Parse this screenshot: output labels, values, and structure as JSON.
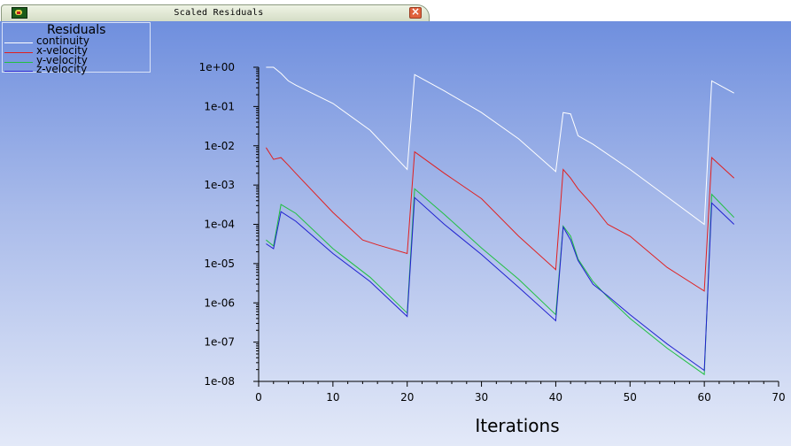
{
  "window": {
    "title": "Scaled Residuals",
    "close_glyph": "×"
  },
  "icons": {
    "app": "app-icon",
    "close": "close-icon"
  },
  "chart_data": {
    "type": "line",
    "title": "",
    "xlabel": "Iterations",
    "ylabel": "",
    "xlim": [
      0,
      70
    ],
    "ylim": [
      1e-08,
      1
    ],
    "yscale": "log",
    "xticks": [
      0,
      10,
      20,
      30,
      40,
      50,
      60,
      70
    ],
    "xtick_labels": [
      "0",
      "10",
      "20",
      "30",
      "40",
      "50",
      "60",
      "70"
    ],
    "yticks": [
      1,
      0.1,
      0.01,
      0.001,
      0.0001,
      1e-05,
      1e-06,
      1e-07,
      1e-08
    ],
    "ytick_labels": [
      "1e+00",
      "1e-01",
      "1e-02",
      "1e-03",
      "1e-04",
      "1e-05",
      "1e-06",
      "1e-07",
      "1e-08"
    ],
    "grid": false,
    "legend": {
      "title": "Residuals",
      "placement": "top-left"
    },
    "series": [
      {
        "name": "continuity",
        "color": "#ffffff",
        "x": [
          1,
          2,
          3,
          4,
          5,
          10,
          15,
          20,
          21,
          25,
          30,
          35,
          40,
          41,
          42,
          43,
          45,
          50,
          55,
          60,
          61,
          64
        ],
        "y": [
          1.0,
          1.0,
          0.7,
          0.45,
          0.35,
          0.12,
          0.025,
          0.0025,
          0.65,
          0.25,
          0.07,
          0.015,
          0.0022,
          0.07,
          0.065,
          0.018,
          0.011,
          0.0025,
          0.0005,
          0.0001,
          0.45,
          0.22
        ]
      },
      {
        "name": "x-velocity",
        "color": "#e02020",
        "x": [
          1,
          2,
          3,
          4,
          5,
          10,
          14,
          16,
          20,
          21,
          25,
          30,
          35,
          40,
          41,
          42,
          43,
          45,
          47,
          50,
          55,
          60,
          61,
          64
        ],
        "y": [
          0.009,
          0.0045,
          0.005,
          0.0032,
          0.002,
          0.0002,
          4e-05,
          3e-05,
          1.8e-05,
          0.007,
          0.002,
          0.00045,
          5e-05,
          7e-06,
          0.0025,
          0.0015,
          0.0008,
          0.0003,
          0.0001,
          5e-05,
          8e-06,
          2e-06,
          0.005,
          0.0015
        ]
      },
      {
        "name": "y-velocity",
        "color": "#20c040",
        "x": [
          1,
          2,
          3,
          5,
          10,
          15,
          20,
          21,
          25,
          30,
          35,
          40,
          41,
          42,
          43,
          45,
          47,
          50,
          55,
          60,
          61,
          64
        ],
        "y": [
          4e-05,
          2.8e-05,
          0.00032,
          0.00019,
          2.4e-05,
          4.5e-06,
          5.5e-07,
          0.0008,
          0.00018,
          2.5e-05,
          4e-06,
          5e-07,
          9e-05,
          5e-05,
          1.3e-05,
          3.5e-06,
          1.4e-06,
          4e-07,
          7e-08,
          1.5e-08,
          0.00058,
          0.00015
        ]
      },
      {
        "name": "z-velocity",
        "color": "#2020d0",
        "x": [
          1,
          2,
          3,
          5,
          10,
          15,
          20,
          21,
          25,
          30,
          35,
          40,
          41,
          42,
          43,
          45,
          47,
          50,
          55,
          60,
          61,
          64
        ],
        "y": [
          3.2e-05,
          2.4e-05,
          0.00021,
          0.00012,
          1.8e-05,
          3.5e-06,
          4.5e-07,
          0.00048,
          0.0001,
          1.7e-05,
          2.5e-06,
          3.5e-07,
          8.5e-05,
          4e-05,
          1.2e-05,
          3e-06,
          1.5e-06,
          5e-07,
          9e-08,
          1.9e-08,
          0.00035,
          0.0001
        ]
      }
    ]
  }
}
